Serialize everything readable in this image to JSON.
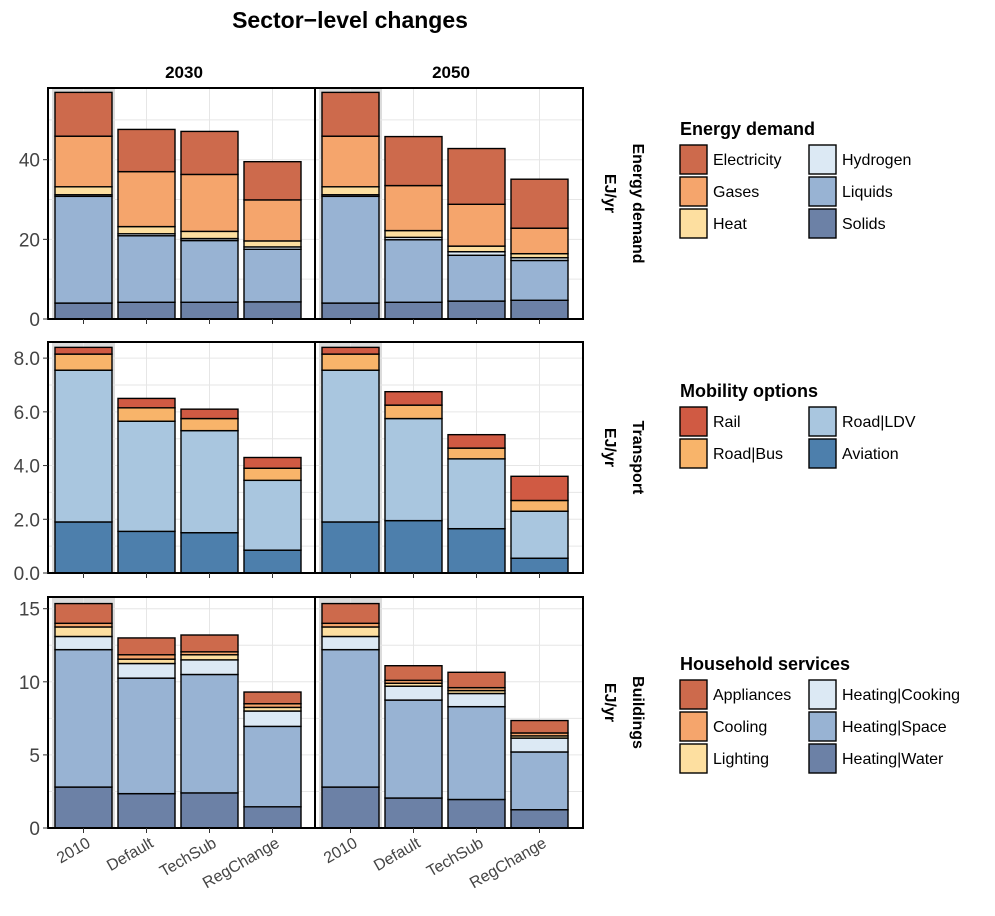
{
  "figure": {
    "title": "Sector−level changes",
    "columns": [
      "2030",
      "2050"
    ],
    "categories": [
      "2010",
      "Default",
      "TechSub",
      "RegChange"
    ]
  },
  "chart_data": [
    {
      "type": "bar",
      "stacked": true,
      "row_label": "Energy demand",
      "ylabel": "EJ/yr",
      "ylim": [
        0,
        58
      ],
      "yticks": [
        0,
        20,
        40
      ],
      "ytick_labels": [
        "0",
        "20",
        "40"
      ],
      "grid": true,
      "highlight_category": "2010",
      "legend": {
        "title": "Energy demand",
        "placement": "right",
        "entries": [
          "Electricity",
          "Gases",
          "Heat",
          "Hydrogen",
          "Liquids",
          "Solids"
        ],
        "colors": [
          "#cd6a4c",
          "#f5a56c",
          "#fddfa0",
          "#dce9f4",
          "#98b3d3",
          "#6c81a6"
        ]
      },
      "categories": [
        "2010",
        "Default",
        "TechSub",
        "RegChange"
      ],
      "stack_order": [
        "Solids",
        "Liquids",
        "Hydrogen",
        "Heat",
        "Gases",
        "Electricity"
      ],
      "panels": [
        {
          "column": "2030",
          "series": [
            {
              "name": "Solids",
              "values": [
                4.0,
                4.2,
                4.2,
                4.3
              ]
            },
            {
              "name": "Liquids",
              "values": [
                26.8,
                16.7,
                15.5,
                13.2
              ]
            },
            {
              "name": "Hydrogen",
              "values": [
                0.4,
                0.5,
                0.5,
                0.6
              ]
            },
            {
              "name": "Heat",
              "values": [
                2.0,
                1.8,
                1.8,
                1.5
              ]
            },
            {
              "name": "Gases",
              "values": [
                12.7,
                13.8,
                14.3,
                10.3
              ]
            },
            {
              "name": "Electricity",
              "values": [
                11.0,
                10.6,
                10.8,
                9.6
              ]
            }
          ]
        },
        {
          "column": "2050",
          "series": [
            {
              "name": "Solids",
              "values": [
                4.0,
                4.2,
                4.5,
                4.7
              ]
            },
            {
              "name": "Liquids",
              "values": [
                26.8,
                15.7,
                11.5,
                10.0
              ]
            },
            {
              "name": "Hydrogen",
              "values": [
                0.4,
                0.6,
                0.9,
                0.7
              ]
            },
            {
              "name": "Heat",
              "values": [
                2.0,
                1.7,
                1.4,
                1.0
              ]
            },
            {
              "name": "Gases",
              "values": [
                12.7,
                11.3,
                10.5,
                6.4
              ]
            },
            {
              "name": "Electricity",
              "values": [
                11.0,
                12.3,
                14.0,
                12.3
              ]
            }
          ]
        }
      ]
    },
    {
      "type": "bar",
      "stacked": true,
      "row_label": "Transport",
      "ylabel": "EJ/yr",
      "ylim": [
        0,
        8.6
      ],
      "yticks": [
        0,
        2,
        4,
        6,
        8
      ],
      "ytick_labels": [
        "0.0",
        "2.0",
        "4.0",
        "6.0",
        "8.0"
      ],
      "grid": true,
      "highlight_category": "2010",
      "legend": {
        "title": "Mobility options",
        "placement": "right",
        "entries": [
          "Rail",
          "Road|Bus",
          "Road|LDV",
          "Aviation"
        ],
        "colors": [
          "#d05a43",
          "#f8b46a",
          "#a9c6df",
          "#4d7fac"
        ]
      },
      "categories": [
        "2010",
        "Default",
        "TechSub",
        "RegChange"
      ],
      "stack_order": [
        "Aviation",
        "Road|LDV",
        "Road|Bus",
        "Rail"
      ],
      "panels": [
        {
          "column": "2030",
          "series": [
            {
              "name": "Aviation",
              "values": [
                1.9,
                1.55,
                1.5,
                0.85
              ]
            },
            {
              "name": "Road|LDV",
              "values": [
                5.65,
                4.1,
                3.8,
                2.6
              ]
            },
            {
              "name": "Road|Bus",
              "values": [
                0.6,
                0.5,
                0.45,
                0.45
              ]
            },
            {
              "name": "Rail",
              "values": [
                0.25,
                0.35,
                0.35,
                0.4
              ]
            }
          ]
        },
        {
          "column": "2050",
          "series": [
            {
              "name": "Aviation",
              "values": [
                1.9,
                1.95,
                1.65,
                0.55
              ]
            },
            {
              "name": "Road|LDV",
              "values": [
                5.65,
                3.8,
                2.6,
                1.75
              ]
            },
            {
              "name": "Road|Bus",
              "values": [
                0.6,
                0.5,
                0.4,
                0.4
              ]
            },
            {
              "name": "Rail",
              "values": [
                0.25,
                0.5,
                0.5,
                0.9
              ]
            }
          ]
        }
      ]
    },
    {
      "type": "bar",
      "stacked": true,
      "row_label": "Buildings",
      "ylabel": "EJ/yr",
      "ylim": [
        0,
        15.8
      ],
      "yticks": [
        0,
        5,
        10,
        15
      ],
      "ytick_labels": [
        "0",
        "5",
        "10",
        "15"
      ],
      "grid": true,
      "highlight_category": "2010",
      "legend": {
        "title": "Household services",
        "placement": "right",
        "entries": [
          "Appliances",
          "Cooling",
          "Lighting",
          "Heating|Cooking",
          "Heating|Space",
          "Heating|Water"
        ],
        "colors": [
          "#cd6a4c",
          "#f5a56c",
          "#fddfa0",
          "#dce9f4",
          "#98b3d3",
          "#6c81a6"
        ]
      },
      "categories": [
        "2010",
        "Default",
        "TechSub",
        "RegChange"
      ],
      "stack_order": [
        "Heating|Water",
        "Heating|Space",
        "Heating|Cooking",
        "Lighting",
        "Cooling",
        "Appliances"
      ],
      "panels": [
        {
          "column": "2030",
          "series": [
            {
              "name": "Heating|Water",
              "values": [
                2.8,
                2.35,
                2.4,
                1.45
              ]
            },
            {
              "name": "Heating|Space",
              "values": [
                9.4,
                7.9,
                8.1,
                5.5
              ]
            },
            {
              "name": "Heating|Cooking",
              "values": [
                0.9,
                1.0,
                1.0,
                1.05
              ]
            },
            {
              "name": "Lighting",
              "values": [
                0.65,
                0.3,
                0.35,
                0.25
              ]
            },
            {
              "name": "Cooling",
              "values": [
                0.25,
                0.3,
                0.2,
                0.25
              ]
            },
            {
              "name": "Appliances",
              "values": [
                1.35,
                1.15,
                1.15,
                0.8
              ]
            }
          ]
        },
        {
          "column": "2050",
          "series": [
            {
              "name": "Heating|Water",
              "values": [
                2.8,
                2.05,
                1.95,
                1.25
              ]
            },
            {
              "name": "Heating|Space",
              "values": [
                9.4,
                6.7,
                6.35,
                3.95
              ]
            },
            {
              "name": "Heating|Cooking",
              "values": [
                0.9,
                0.95,
                0.9,
                0.95
              ]
            },
            {
              "name": "Lighting",
              "values": [
                0.65,
                0.2,
                0.2,
                0.15
              ]
            },
            {
              "name": "Cooling",
              "values": [
                0.25,
                0.2,
                0.2,
                0.2
              ]
            },
            {
              "name": "Appliances",
              "values": [
                1.35,
                1.0,
                1.05,
                0.85
              ]
            }
          ]
        }
      ]
    }
  ]
}
